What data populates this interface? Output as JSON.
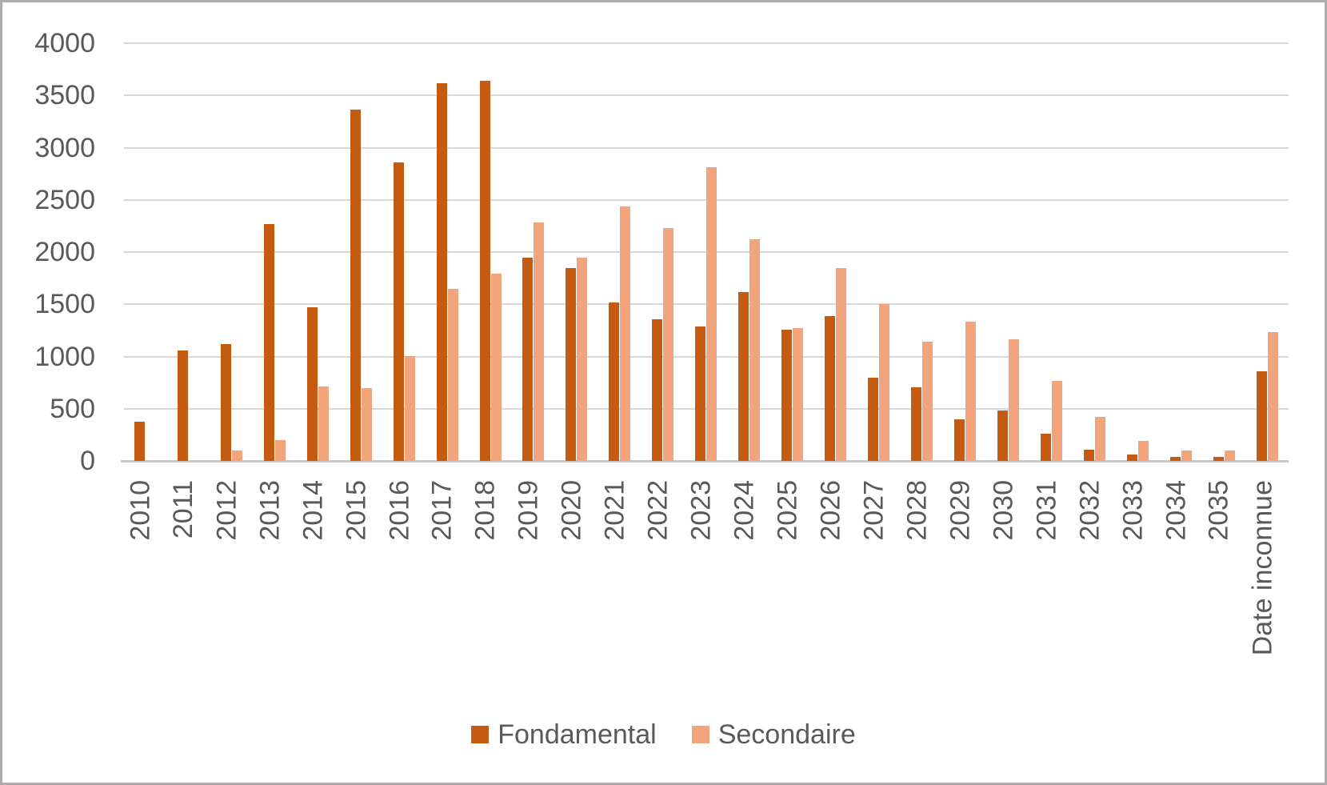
{
  "chart_data": {
    "type": "bar",
    "title": "",
    "categories": [
      "2010",
      "2011",
      "2012",
      "2013",
      "2014",
      "2015",
      "2016",
      "2017",
      "2018",
      "2019",
      "2020",
      "2021",
      "2022",
      "2023",
      "2024",
      "2025",
      "2026",
      "2027",
      "2028",
      "2029",
      "2030",
      "2031",
      "2032",
      "2033",
      "2034",
      "2035",
      "Date inconnue"
    ],
    "series": [
      {
        "name": "Fondamental",
        "color": "#c55a11",
        "values": [
          375,
          1060,
          1120,
          2270,
          1475,
          3365,
          2855,
          3615,
          3640,
          1950,
          1850,
          1515,
          1360,
          1290,
          1615,
          1260,
          1385,
          795,
          705,
          400,
          480,
          260,
          110,
          60,
          40,
          40,
          855
        ]
      },
      {
        "name": "Secondaire",
        "color": "#f2a47d",
        "values": [
          0,
          0,
          100,
          200,
          715,
          695,
          1005,
          1645,
          1795,
          2280,
          1950,
          2435,
          2230,
          2810,
          2125,
          1275,
          1845,
          1505,
          1140,
          1330,
          1165,
          765,
          425,
          190,
          100,
          100,
          1230
        ]
      }
    ],
    "ylim": [
      0,
      4000
    ],
    "y_ticks": [
      0,
      500,
      1000,
      1500,
      2000,
      2500,
      3000,
      3500,
      4000
    ],
    "grid": true,
    "legend_position": "bottom",
    "x_label_rotation": -90
  },
  "colors": {
    "background": "#ffffff",
    "border": "#aeacac",
    "gridline": "#d9d9d9",
    "axis_line": "#c8c6c6",
    "axis_text": "#595959"
  }
}
